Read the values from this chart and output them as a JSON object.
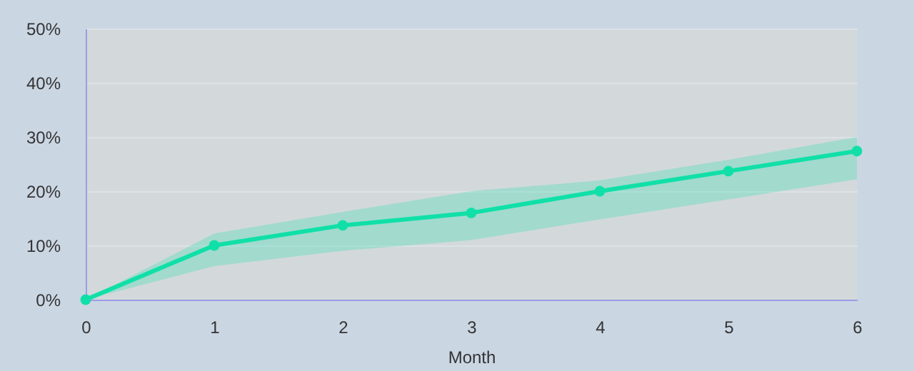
{
  "chart_data": {
    "type": "line",
    "xlabel": "Month",
    "x": [
      0,
      1,
      2,
      3,
      4,
      5,
      6
    ],
    "series": [
      {
        "color": "#10e0a8",
        "values": [
          0,
          10,
          13.7,
          16,
          20,
          23.7,
          27.4
        ],
        "lower": [
          0,
          6.2,
          9,
          11,
          14.8,
          18.5,
          22.2
        ],
        "upper": [
          0,
          12.2,
          16.2,
          20,
          22,
          25.8,
          30
        ]
      }
    ],
    "xlim": [
      0,
      6
    ],
    "xticks": [
      0,
      1,
      2,
      3,
      4,
      5,
      6
    ],
    "ylim": [
      0,
      50
    ],
    "yticks": [
      {
        "value": 0,
        "label": "0%"
      },
      {
        "value": 10,
        "label": "10%"
      },
      {
        "value": 20,
        "label": "20%"
      },
      {
        "value": 30,
        "label": "30%"
      },
      {
        "value": 40,
        "label": "40%"
      },
      {
        "value": 50,
        "label": "50%"
      }
    ],
    "grid": "y",
    "marker": "circle",
    "line_style": "solid"
  }
}
